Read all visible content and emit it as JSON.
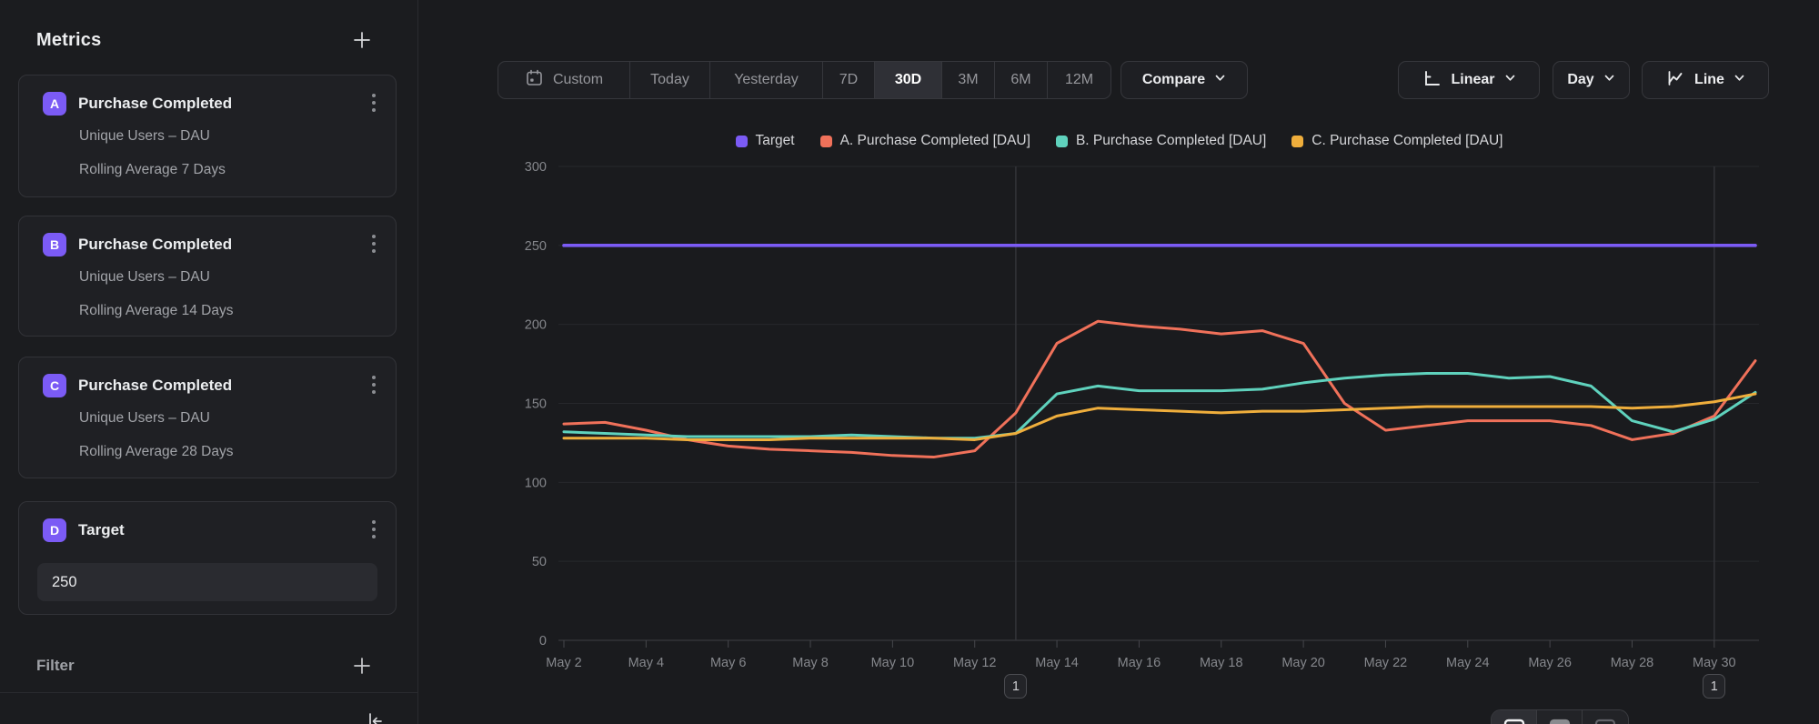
{
  "sidebar": {
    "title": "Metrics",
    "metrics": [
      {
        "letter": "A",
        "title": "Purchase Completed",
        "line1": "Unique Users – DAU",
        "line2": "Rolling Average 7 Days"
      },
      {
        "letter": "B",
        "title": "Purchase Completed",
        "line1": "Unique Users – DAU",
        "line2": "Rolling Average 14 Days"
      },
      {
        "letter": "C",
        "title": "Purchase Completed",
        "line1": "Unique Users – DAU",
        "line2": "Rolling Average 28 Days"
      }
    ],
    "target": {
      "letter": "D",
      "title": "Target",
      "value": "250"
    },
    "filter_label": "Filter"
  },
  "toolbar": {
    "ranges": [
      "Custom",
      "Today",
      "Yesterday",
      "7D",
      "30D",
      "3M",
      "6M",
      "12M"
    ],
    "active_range": "30D",
    "compare_label": "Compare",
    "scale_label": "Linear",
    "interval_label": "Day",
    "chart_type_label": "Line"
  },
  "legend": [
    {
      "label": "Target",
      "color": "#7b5bf5"
    },
    {
      "label": "A. Purchase Completed [DAU]",
      "color": "#f0715a"
    },
    {
      "label": "B. Purchase Completed [DAU]",
      "color": "#5fd2bd"
    },
    {
      "label": "C. Purchase Completed [DAU]",
      "color": "#efae3c"
    }
  ],
  "chart_data": {
    "type": "line",
    "x": [
      "May 2",
      "May 3",
      "May 4",
      "May 5",
      "May 6",
      "May 7",
      "May 8",
      "May 9",
      "May 10",
      "May 11",
      "May 12",
      "May 13",
      "May 14",
      "May 15",
      "May 16",
      "May 17",
      "May 18",
      "May 19",
      "May 20",
      "May 21",
      "May 22",
      "May 23",
      "May 24",
      "May 25",
      "May 26",
      "May 27",
      "May 28",
      "May 29",
      "May 30",
      "May 31"
    ],
    "x_tick_every": 2,
    "ylim": [
      0,
      300
    ],
    "yticks": [
      0,
      50,
      100,
      150,
      200,
      250,
      300
    ],
    "grid": true,
    "legend_position": "top",
    "series": [
      {
        "name": "Target",
        "color": "#7b5bf5",
        "values": [
          250,
          250,
          250,
          250,
          250,
          250,
          250,
          250,
          250,
          250,
          250,
          250,
          250,
          250,
          250,
          250,
          250,
          250,
          250,
          250,
          250,
          250,
          250,
          250,
          250,
          250,
          250,
          250,
          250,
          250
        ]
      },
      {
        "name": "A. Purchase Completed [DAU]",
        "color": "#f0715a",
        "values": [
          137,
          138,
          133,
          127,
          123,
          121,
          120,
          119,
          117,
          116,
          120,
          144,
          188,
          202,
          199,
          197,
          194,
          196,
          188,
          150,
          133,
          136,
          139,
          139,
          139,
          136,
          127,
          131,
          142,
          177
        ]
      },
      {
        "name": "B. Purchase Completed [DAU]",
        "color": "#5fd2bd",
        "values": [
          132,
          131,
          130,
          129,
          129,
          129,
          129,
          130,
          129,
          128,
          128,
          131,
          156,
          161,
          158,
          158,
          158,
          159,
          163,
          166,
          168,
          169,
          169,
          166,
          167,
          161,
          139,
          132,
          140,
          157
        ]
      },
      {
        "name": "C. Purchase Completed [DAU]",
        "color": "#efae3c",
        "values": [
          128,
          128,
          128,
          127,
          127,
          127,
          128,
          128,
          128,
          128,
          127,
          131,
          142,
          147,
          146,
          145,
          144,
          145,
          145,
          146,
          147,
          148,
          148,
          148,
          148,
          148,
          147,
          148,
          151,
          156
        ]
      }
    ],
    "annotations": [
      {
        "x": "May 13",
        "label": "1"
      },
      {
        "x": "May 30",
        "label": "1"
      }
    ]
  }
}
